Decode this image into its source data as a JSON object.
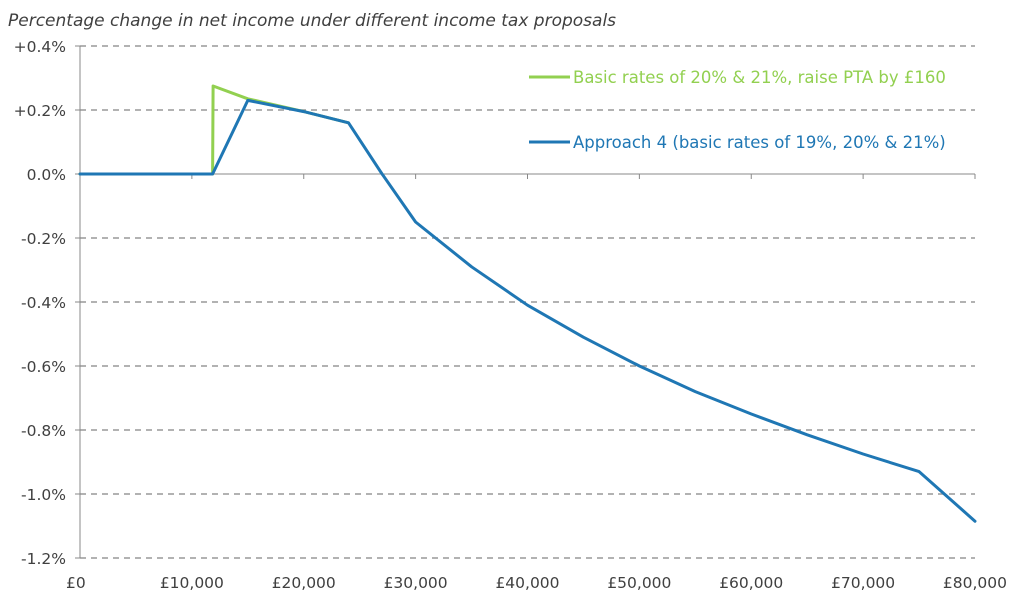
{
  "chart_data": {
    "type": "line",
    "title": "Percentage change in net income under different income tax proposals",
    "xlabel": "",
    "ylabel": "",
    "xlim": [
      0,
      80000
    ],
    "ylim": [
      -1.2,
      0.4
    ],
    "x_ticks": [
      0,
      10000,
      20000,
      30000,
      40000,
      50000,
      60000,
      70000,
      80000
    ],
    "x_tick_labels": [
      "£0",
      "£10,000",
      "£20,000",
      "£30,000",
      "£40,000",
      "£50,000",
      "£60,000",
      "£70,000",
      "£80,000"
    ],
    "y_ticks": [
      0.4,
      0.2,
      0.0,
      -0.2,
      -0.4,
      -0.6,
      -0.8,
      -1.0,
      -1.2
    ],
    "y_tick_labels": [
      "+0.4%",
      "+0.2%",
      "0.0%",
      "-0.2%",
      "-0.4%",
      "-0.6%",
      "-0.8%",
      "-1.0%",
      "-1.2%"
    ],
    "grid": "horizontal dashed",
    "legend_position": "top-right",
    "series": [
      {
        "name": "Basic rates of 20% & 21%, raise PTA by £160",
        "color": "#92d050",
        "x": [
          0,
          11850,
          11900,
          15000,
          20000,
          24000
        ],
        "y": [
          0.0,
          0.0,
          0.275,
          0.235,
          0.195,
          0.16
        ]
      },
      {
        "name": "Approach 4 (basic rates of 19%, 20% & 21%)",
        "color": "#1f77b4",
        "x": [
          0,
          11850,
          15000,
          20000,
          24000,
          27000,
          30000,
          35000,
          40000,
          45000,
          50000,
          55000,
          60000,
          65000,
          70000,
          75000,
          80000
        ],
        "y": [
          0.0,
          0.0,
          0.23,
          0.195,
          0.16,
          0.0,
          -0.15,
          -0.29,
          -0.41,
          -0.51,
          -0.6,
          -0.68,
          -0.75,
          -0.815,
          -0.875,
          -0.93,
          -1.085
        ]
      }
    ]
  }
}
